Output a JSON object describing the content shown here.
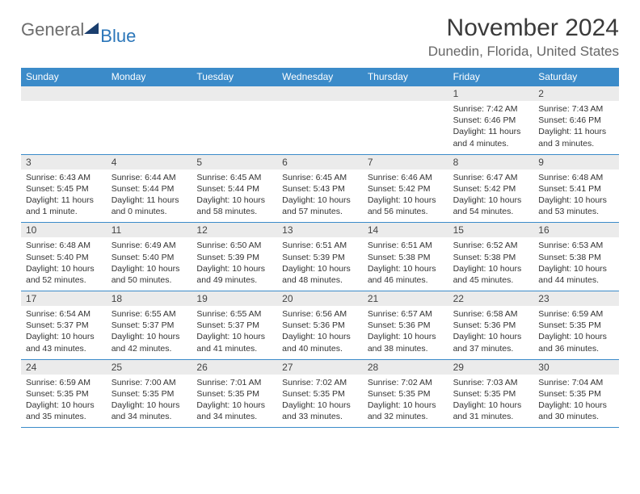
{
  "brand": {
    "part1": "General",
    "part2": "Blue"
  },
  "title": "November 2024",
  "location": "Dunedin, Florida, United States",
  "colors": {
    "header_bg": "#3b8bc9",
    "header_text": "#ffffff",
    "daynum_bg": "#ebebeb",
    "border": "#3b8bc9",
    "title_color": "#3a3a3a",
    "location_color": "#666666",
    "logo_gray": "#6d6d6d",
    "logo_blue": "#2b76b9",
    "logo_triangle": "#1a3e6e"
  },
  "weekdays": [
    "Sunday",
    "Monday",
    "Tuesday",
    "Wednesday",
    "Thursday",
    "Friday",
    "Saturday"
  ],
  "weeks": [
    [
      {
        "n": "",
        "sr": "",
        "ss": "",
        "dl1": "",
        "dl2": ""
      },
      {
        "n": "",
        "sr": "",
        "ss": "",
        "dl1": "",
        "dl2": ""
      },
      {
        "n": "",
        "sr": "",
        "ss": "",
        "dl1": "",
        "dl2": ""
      },
      {
        "n": "",
        "sr": "",
        "ss": "",
        "dl1": "",
        "dl2": ""
      },
      {
        "n": "",
        "sr": "",
        "ss": "",
        "dl1": "",
        "dl2": ""
      },
      {
        "n": "1",
        "sr": "Sunrise: 7:42 AM",
        "ss": "Sunset: 6:46 PM",
        "dl1": "Daylight: 11 hours",
        "dl2": "and 4 minutes."
      },
      {
        "n": "2",
        "sr": "Sunrise: 7:43 AM",
        "ss": "Sunset: 6:46 PM",
        "dl1": "Daylight: 11 hours",
        "dl2": "and 3 minutes."
      }
    ],
    [
      {
        "n": "3",
        "sr": "Sunrise: 6:43 AM",
        "ss": "Sunset: 5:45 PM",
        "dl1": "Daylight: 11 hours",
        "dl2": "and 1 minute."
      },
      {
        "n": "4",
        "sr": "Sunrise: 6:44 AM",
        "ss": "Sunset: 5:44 PM",
        "dl1": "Daylight: 11 hours",
        "dl2": "and 0 minutes."
      },
      {
        "n": "5",
        "sr": "Sunrise: 6:45 AM",
        "ss": "Sunset: 5:44 PM",
        "dl1": "Daylight: 10 hours",
        "dl2": "and 58 minutes."
      },
      {
        "n": "6",
        "sr": "Sunrise: 6:45 AM",
        "ss": "Sunset: 5:43 PM",
        "dl1": "Daylight: 10 hours",
        "dl2": "and 57 minutes."
      },
      {
        "n": "7",
        "sr": "Sunrise: 6:46 AM",
        "ss": "Sunset: 5:42 PM",
        "dl1": "Daylight: 10 hours",
        "dl2": "and 56 minutes."
      },
      {
        "n": "8",
        "sr": "Sunrise: 6:47 AM",
        "ss": "Sunset: 5:42 PM",
        "dl1": "Daylight: 10 hours",
        "dl2": "and 54 minutes."
      },
      {
        "n": "9",
        "sr": "Sunrise: 6:48 AM",
        "ss": "Sunset: 5:41 PM",
        "dl1": "Daylight: 10 hours",
        "dl2": "and 53 minutes."
      }
    ],
    [
      {
        "n": "10",
        "sr": "Sunrise: 6:48 AM",
        "ss": "Sunset: 5:40 PM",
        "dl1": "Daylight: 10 hours",
        "dl2": "and 52 minutes."
      },
      {
        "n": "11",
        "sr": "Sunrise: 6:49 AM",
        "ss": "Sunset: 5:40 PM",
        "dl1": "Daylight: 10 hours",
        "dl2": "and 50 minutes."
      },
      {
        "n": "12",
        "sr": "Sunrise: 6:50 AM",
        "ss": "Sunset: 5:39 PM",
        "dl1": "Daylight: 10 hours",
        "dl2": "and 49 minutes."
      },
      {
        "n": "13",
        "sr": "Sunrise: 6:51 AM",
        "ss": "Sunset: 5:39 PM",
        "dl1": "Daylight: 10 hours",
        "dl2": "and 48 minutes."
      },
      {
        "n": "14",
        "sr": "Sunrise: 6:51 AM",
        "ss": "Sunset: 5:38 PM",
        "dl1": "Daylight: 10 hours",
        "dl2": "and 46 minutes."
      },
      {
        "n": "15",
        "sr": "Sunrise: 6:52 AM",
        "ss": "Sunset: 5:38 PM",
        "dl1": "Daylight: 10 hours",
        "dl2": "and 45 minutes."
      },
      {
        "n": "16",
        "sr": "Sunrise: 6:53 AM",
        "ss": "Sunset: 5:38 PM",
        "dl1": "Daylight: 10 hours",
        "dl2": "and 44 minutes."
      }
    ],
    [
      {
        "n": "17",
        "sr": "Sunrise: 6:54 AM",
        "ss": "Sunset: 5:37 PM",
        "dl1": "Daylight: 10 hours",
        "dl2": "and 43 minutes."
      },
      {
        "n": "18",
        "sr": "Sunrise: 6:55 AM",
        "ss": "Sunset: 5:37 PM",
        "dl1": "Daylight: 10 hours",
        "dl2": "and 42 minutes."
      },
      {
        "n": "19",
        "sr": "Sunrise: 6:55 AM",
        "ss": "Sunset: 5:37 PM",
        "dl1": "Daylight: 10 hours",
        "dl2": "and 41 minutes."
      },
      {
        "n": "20",
        "sr": "Sunrise: 6:56 AM",
        "ss": "Sunset: 5:36 PM",
        "dl1": "Daylight: 10 hours",
        "dl2": "and 40 minutes."
      },
      {
        "n": "21",
        "sr": "Sunrise: 6:57 AM",
        "ss": "Sunset: 5:36 PM",
        "dl1": "Daylight: 10 hours",
        "dl2": "and 38 minutes."
      },
      {
        "n": "22",
        "sr": "Sunrise: 6:58 AM",
        "ss": "Sunset: 5:36 PM",
        "dl1": "Daylight: 10 hours",
        "dl2": "and 37 minutes."
      },
      {
        "n": "23",
        "sr": "Sunrise: 6:59 AM",
        "ss": "Sunset: 5:35 PM",
        "dl1": "Daylight: 10 hours",
        "dl2": "and 36 minutes."
      }
    ],
    [
      {
        "n": "24",
        "sr": "Sunrise: 6:59 AM",
        "ss": "Sunset: 5:35 PM",
        "dl1": "Daylight: 10 hours",
        "dl2": "and 35 minutes."
      },
      {
        "n": "25",
        "sr": "Sunrise: 7:00 AM",
        "ss": "Sunset: 5:35 PM",
        "dl1": "Daylight: 10 hours",
        "dl2": "and 34 minutes."
      },
      {
        "n": "26",
        "sr": "Sunrise: 7:01 AM",
        "ss": "Sunset: 5:35 PM",
        "dl1": "Daylight: 10 hours",
        "dl2": "and 34 minutes."
      },
      {
        "n": "27",
        "sr": "Sunrise: 7:02 AM",
        "ss": "Sunset: 5:35 PM",
        "dl1": "Daylight: 10 hours",
        "dl2": "and 33 minutes."
      },
      {
        "n": "28",
        "sr": "Sunrise: 7:02 AM",
        "ss": "Sunset: 5:35 PM",
        "dl1": "Daylight: 10 hours",
        "dl2": "and 32 minutes."
      },
      {
        "n": "29",
        "sr": "Sunrise: 7:03 AM",
        "ss": "Sunset: 5:35 PM",
        "dl1": "Daylight: 10 hours",
        "dl2": "and 31 minutes."
      },
      {
        "n": "30",
        "sr": "Sunrise: 7:04 AM",
        "ss": "Sunset: 5:35 PM",
        "dl1": "Daylight: 10 hours",
        "dl2": "and 30 minutes."
      }
    ]
  ]
}
